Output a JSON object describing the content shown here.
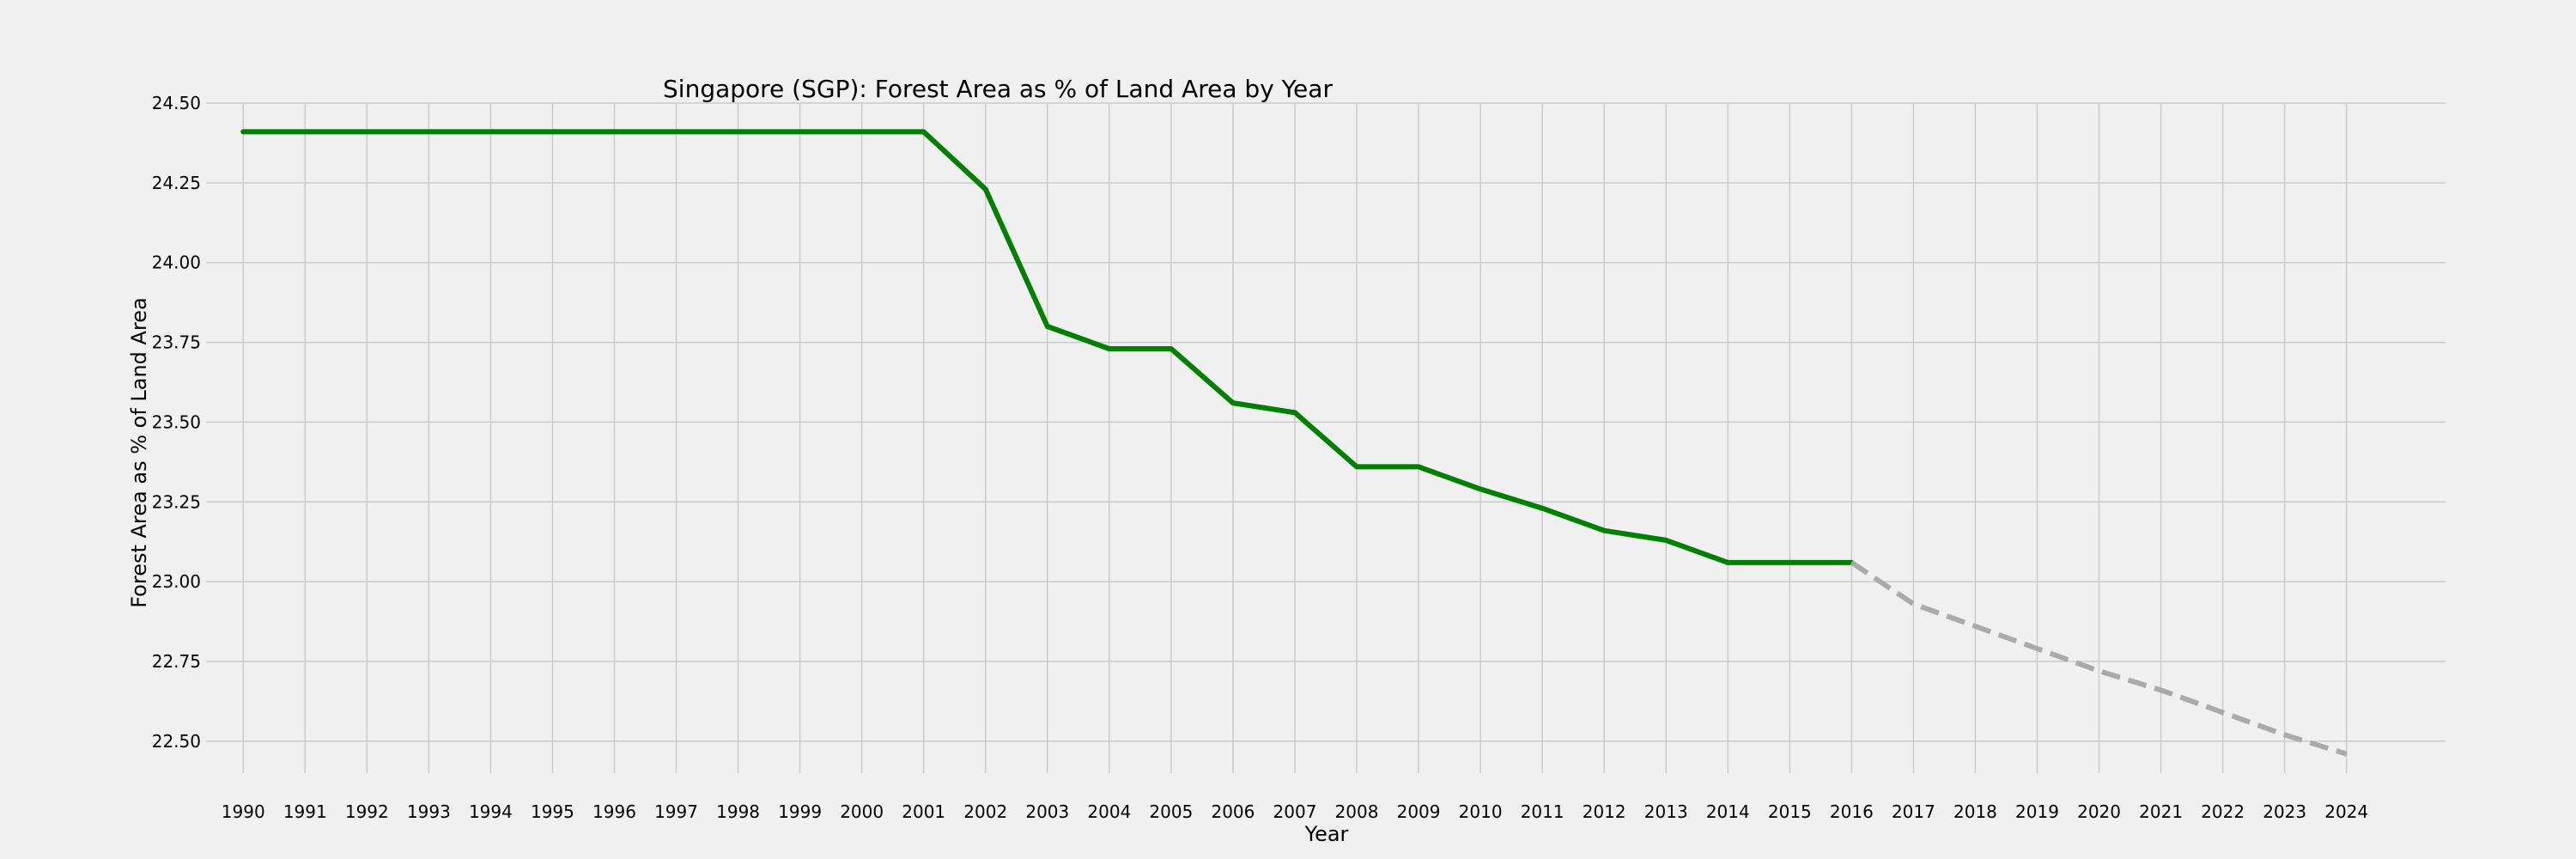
{
  "chart_data": {
    "type": "line",
    "title": "Singapore (SGP): Forest Area as % of Land Area by Year",
    "xlabel": "Year",
    "ylabel": "Forest Area as % of Land Area",
    "ylim": [
      22.4,
      24.5
    ],
    "xlim": [
      1989.4,
      2025.6
    ],
    "grid": true,
    "x_ticks": [
      1990,
      1991,
      1992,
      1993,
      1994,
      1995,
      1996,
      1997,
      1998,
      1999,
      2000,
      2001,
      2002,
      2003,
      2004,
      2005,
      2006,
      2007,
      2008,
      2009,
      2010,
      2011,
      2012,
      2013,
      2014,
      2015,
      2016,
      2017,
      2018,
      2019,
      2020,
      2021,
      2022,
      2023,
      2024
    ],
    "y_ticks": [
      "22.50",
      "22.75",
      "23.00",
      "23.25",
      "23.50",
      "23.75",
      "24.00",
      "24.25",
      "24.50"
    ],
    "series": [
      {
        "style": "solid",
        "color": "#008000",
        "x": [
          1990,
          1991,
          1992,
          1993,
          1994,
          1995,
          1996,
          1997,
          1998,
          1999,
          2000,
          2001,
          2002,
          2003,
          2004,
          2005,
          2006,
          2007,
          2008,
          2009,
          2010,
          2011,
          2012,
          2013,
          2014,
          2015,
          2016
        ],
        "values": [
          24.41,
          24.41,
          24.41,
          24.41,
          24.41,
          24.41,
          24.41,
          24.41,
          24.41,
          24.41,
          24.41,
          24.41,
          24.23,
          23.8,
          23.73,
          23.73,
          23.56,
          23.53,
          23.36,
          23.36,
          23.29,
          23.23,
          23.16,
          23.13,
          23.06,
          23.06,
          23.06
        ]
      },
      {
        "style": "dashed",
        "color": "#aaaaaa",
        "x": [
          2016,
          2017,
          2018,
          2019,
          2020,
          2021,
          2022,
          2023,
          2024
        ],
        "values": [
          23.06,
          22.93,
          22.86,
          22.79,
          22.72,
          22.66,
          22.59,
          22.52,
          22.46
        ]
      }
    ]
  }
}
